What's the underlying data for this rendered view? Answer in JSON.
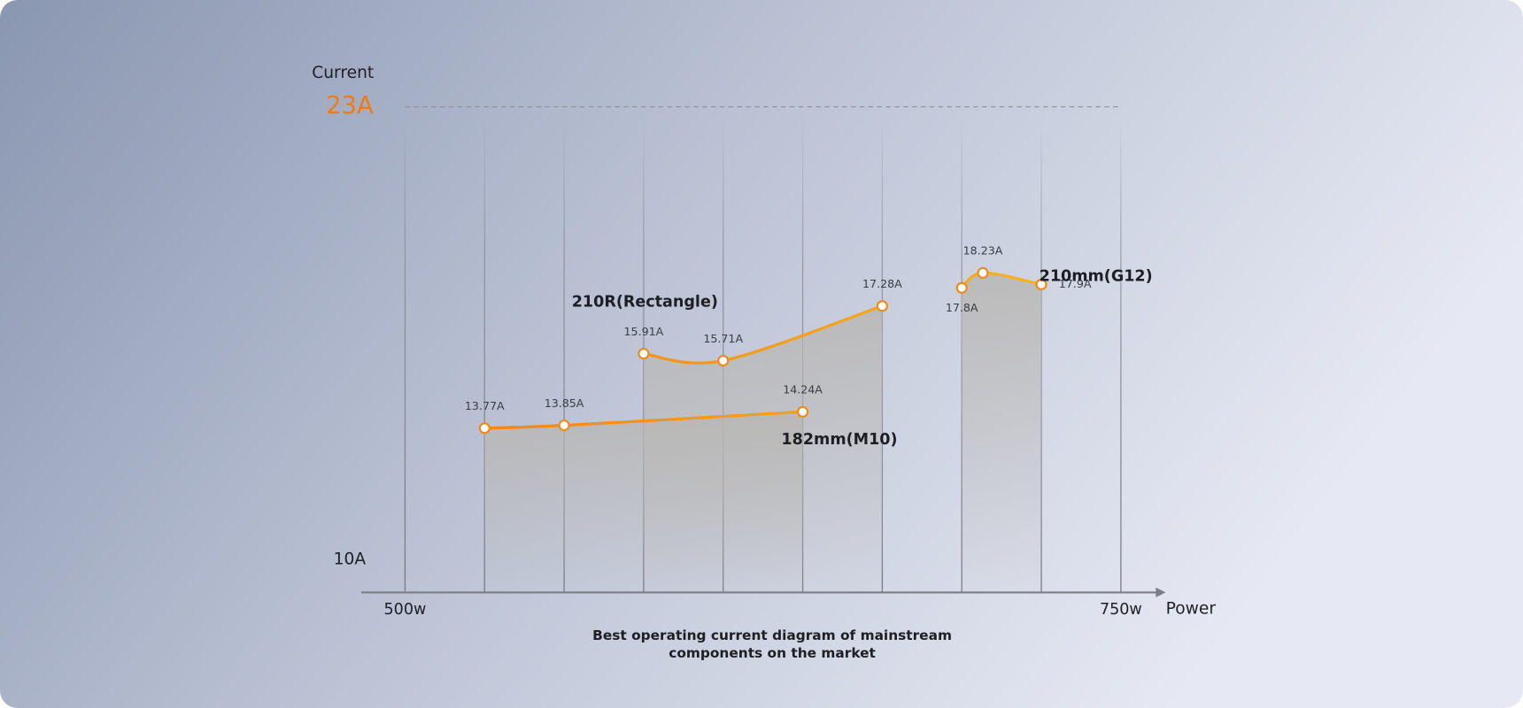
{
  "chart_data": {
    "type": "line",
    "y_label": "Current",
    "x_label": "Power",
    "caption": "Best operating current diagram of mainstream components on the market",
    "xlim": [
      500,
      750
    ],
    "xticks": [
      {
        "value": 500,
        "label": "500w"
      },
      {
        "value": 527.78,
        "label": null
      },
      {
        "value": 555.56,
        "label": null
      },
      {
        "value": 583.33,
        "label": null
      },
      {
        "value": 611.11,
        "label": null
      },
      {
        "value": 638.89,
        "label": null
      },
      {
        "value": 666.67,
        "label": null
      },
      {
        "value": 694.44,
        "label": null
      },
      {
        "value": 722.22,
        "label": null
      },
      {
        "value": 750,
        "label": "750w"
      }
    ],
    "ylim": [
      10,
      23
    ],
    "yticks": [
      {
        "value": 10,
        "label": "10A"
      },
      {
        "value": 23,
        "label": "23A"
      }
    ],
    "series": [
      {
        "name": "182mm(M10)",
        "color": "#f08a1c",
        "x": [
          527.78,
          555.56,
          611.11,
          638.89
        ],
        "values": [
          13.77,
          13.85,
          null,
          14.24
        ],
        "value_labels": [
          "13.77A",
          "13.85A",
          null,
          "14.24A"
        ]
      },
      {
        "name": "210R(Rectangle)",
        "color": "#f08a1c",
        "x": [
          583.33,
          611.11,
          666.67
        ],
        "values": [
          15.91,
          15.71,
          17.28
        ],
        "value_labels": [
          "15.91A",
          "15.71A",
          "17.28A"
        ]
      },
      {
        "name": "210mm(G12)",
        "color": "#f08a1c",
        "x": [
          694.44,
          701.8,
          722.22
        ],
        "values": [
          17.8,
          18.23,
          17.9
        ],
        "value_labels": [
          "17.8A",
          "18.23A",
          "17.9A"
        ]
      }
    ]
  }
}
